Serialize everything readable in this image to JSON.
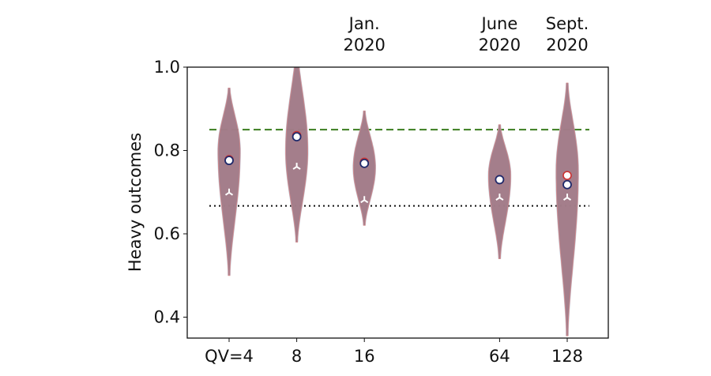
{
  "chart_data": {
    "type": "violin",
    "ylabel": "Heavy outcomes",
    "xlabel": "",
    "ylim": [
      0.35,
      1.0
    ],
    "x_scale": "log2",
    "yticks": [
      "0.4",
      "0.6",
      "0.8",
      "1.0"
    ],
    "ytick_values": [
      0.4,
      0.6,
      0.8,
      1.0
    ],
    "categories": [
      {
        "x": 4,
        "label": "QV=4",
        "annotation": []
      },
      {
        "x": 8,
        "label": "8",
        "annotation": []
      },
      {
        "x": 16,
        "label": "16",
        "annotation": [
          "Jan.",
          "2020"
        ]
      },
      {
        "x": 64,
        "label": "64",
        "annotation": [
          "June",
          "2020"
        ]
      },
      {
        "x": 128,
        "label": "128",
        "annotation": [
          "Sept.",
          "2020"
        ]
      }
    ],
    "violins": [
      {
        "min": 0.5,
        "max": 0.95,
        "peak": 0.8,
        "mean": 0.776,
        "mean_alt": 0.778,
        "median": 0.699
      },
      {
        "min": 0.58,
        "max": 1.05,
        "peak": 0.8,
        "mean": 0.833,
        "mean_alt": 0.836,
        "median": 0.761
      },
      {
        "min": 0.62,
        "max": 0.895,
        "peak": 0.76,
        "mean": 0.769,
        "mean_alt": 0.772,
        "median": 0.681
      },
      {
        "min": 0.54,
        "max": 0.862,
        "peak": 0.74,
        "mean": 0.73,
        "mean_alt": 0.73,
        "median": 0.687
      },
      {
        "min": 0.355,
        "max": 0.962,
        "peak": 0.75,
        "mean": 0.718,
        "mean_alt": 0.74,
        "median": 0.687
      }
    ],
    "reference_lines": [
      {
        "y": 0.85,
        "style": "dashed",
        "color": "#3a7d1e"
      },
      {
        "y": 0.667,
        "style": "dotted",
        "color": "#111111"
      }
    ],
    "colors": {
      "violin_fill": "#a47b87",
      "violin_edge_a": "#d98a8a",
      "violin_edge_b": "#7fa3c7",
      "mean": "#1f2a6b",
      "mean_alt": "#cc3333",
      "median": "#ffffff"
    },
    "grid": false
  }
}
